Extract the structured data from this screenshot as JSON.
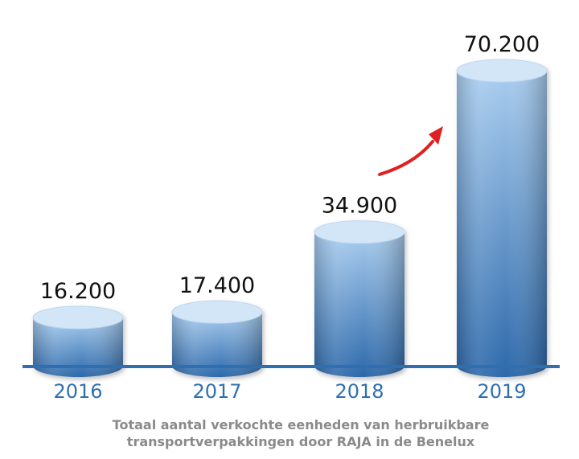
{
  "chart_data": {
    "type": "bar",
    "style": "3d-cylinder",
    "categories": [
      "2016",
      "2017",
      "2018",
      "2019"
    ],
    "values": [
      16200,
      17400,
      34900,
      70200
    ],
    "value_labels": [
      "16.200",
      "17.400",
      "34.900",
      "70.200"
    ],
    "caption_lines": [
      "Totaal aantal verkochte eenheden van herbruikbare",
      "transportverpakkingen door RAJA in de Benelux"
    ],
    "colors": {
      "bar_top": "#a9cdef",
      "bar_bottom": "#2c68aa",
      "cap_light": "#d3e6f8",
      "baseline": "#2f6fb0",
      "arrow": "#e02020",
      "year_text": "#2f6fb0",
      "caption_text": "#8a8a8a"
    },
    "annotation": "red-growth-arrow"
  }
}
